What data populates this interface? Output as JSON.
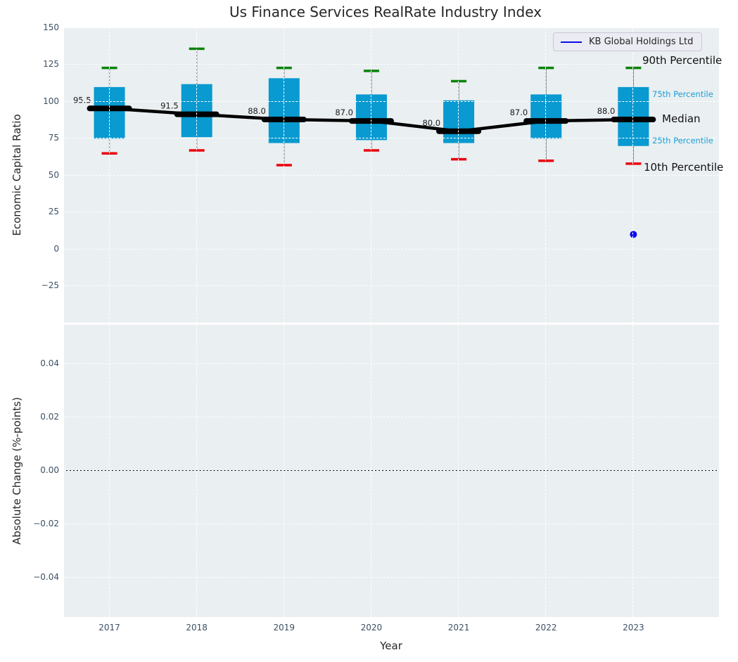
{
  "title": "Us Finance Services RealRate Industry Index",
  "legend": {
    "label": "KB Global Holdings Ltd"
  },
  "annotations": {
    "p90": "90th Percentile",
    "p75": "75th Percentile",
    "median": "Median",
    "p25": "25th Percentile",
    "p10": "10th Percentile"
  },
  "colors": {
    "box_fill": "#089ad0",
    "median_line": "#000000",
    "whisker": "#8a8d8f",
    "cap_upper": "#0a820a",
    "cap_lower": "#e8000d",
    "company_dot": "#0b0bef",
    "legend_line": "#0b0bef",
    "axes_bg": "#eaeff1",
    "grid": "#ffffff",
    "tick_label": "#3d4f63",
    "text": "#262626",
    "percentile_label_blue": "#1a9fd9"
  },
  "chart_data": [
    {
      "type": "box",
      "panel": "top",
      "title": "Us Finance Services RealRate Industry Index",
      "ylabel": "Economic Capital Ratio",
      "x": [
        2017,
        2018,
        2019,
        2020,
        2021,
        2022,
        2023
      ],
      "xtick_labels": [
        "2017",
        "2018",
        "2019",
        "2020",
        "2021",
        "2022",
        "2023"
      ],
      "yticks": [
        150,
        125,
        100,
        75,
        50,
        25,
        0,
        -25
      ],
      "ytick_labels": [
        "150",
        "125",
        "100",
        "75",
        "50",
        "25",
        "0",
        "−25"
      ],
      "ylim": [
        -49.8,
        150
      ],
      "xlim": [
        2016.48,
        2023.98
      ],
      "grid": true,
      "legend_position": "upper right",
      "boxes": [
        {
          "year": 2017,
          "p10": 65,
          "p25": 75,
          "median": 95.5,
          "p75": 110,
          "p90": 123,
          "label": "95.5"
        },
        {
          "year": 2018,
          "p10": 67,
          "p25": 76,
          "median": 91.5,
          "p75": 112,
          "p90": 136,
          "label": "91.5"
        },
        {
          "year": 2019,
          "p10": 57,
          "p25": 72,
          "median": 88.0,
          "p75": 116,
          "p90": 123,
          "label": "88.0"
        },
        {
          "year": 2020,
          "p10": 67,
          "p25": 74,
          "median": 87.0,
          "p75": 105,
          "p90": 121,
          "label": "87.0"
        },
        {
          "year": 2021,
          "p10": 61,
          "p25": 72,
          "median": 80.0,
          "p75": 101,
          "p90": 114,
          "label": "80.0"
        },
        {
          "year": 2022,
          "p10": 60,
          "p25": 75,
          "median": 87.0,
          "p75": 105,
          "p90": 123,
          "label": "87.0"
        },
        {
          "year": 2023,
          "p10": 58,
          "p25": 70,
          "median": 88.0,
          "p75": 110,
          "p90": 123,
          "label": "88.0"
        }
      ],
      "scatter": [
        {
          "name": "KB Global Holdings Ltd",
          "year": 2023,
          "value": 10
        }
      ]
    },
    {
      "type": "line",
      "panel": "bottom",
      "xlabel": "Year",
      "ylabel": "Absolute Change (%-points)",
      "x": [
        2017,
        2018,
        2019,
        2020,
        2021,
        2022,
        2023
      ],
      "yticks": [
        0.04,
        0.02,
        0,
        -0.02,
        -0.04
      ],
      "ytick_labels": [
        "0.04",
        "0.02",
        "0.00",
        "−0.02",
        "−0.04"
      ],
      "ylim": [
        -0.0547,
        0.0547
      ],
      "series": [],
      "zero_line": 0,
      "grid": true
    }
  ]
}
